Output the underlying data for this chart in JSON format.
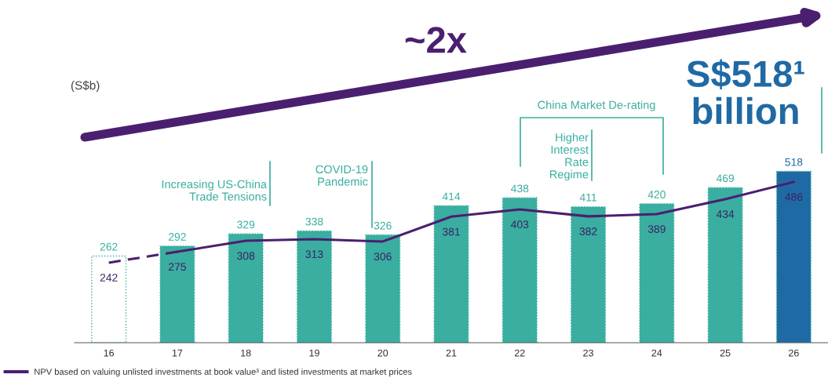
{
  "chart_data": {
    "type": "bar",
    "categories": [
      "16",
      "17",
      "18",
      "19",
      "20",
      "21",
      "22",
      "23",
      "24",
      "25",
      "26"
    ],
    "series": [
      {
        "color": "#3aaea0",
        "colors": [
          "#ffffff",
          "#3aaea0",
          "#3aaea0",
          "#3aaea0",
          "#3aaea0",
          "#3aaea0",
          "#3aaea0",
          "#3aaea0",
          "#3aaea0",
          "#3aaea0",
          "#1f6aa5"
        ],
        "values": [
          262,
          292,
          329,
          338,
          326,
          414,
          438,
          411,
          420,
          469,
          518
        ]
      },
      {
        "type": "line",
        "color": "#4b1f6f",
        "line_style": "dashed",
        "values": [
          242,
          275,
          null,
          null,
          null,
          null,
          null,
          null,
          null,
          null,
          null
        ],
        "value_labels": [
          "242",
          null,
          null,
          null,
          null,
          null,
          null,
          null,
          null,
          null,
          null
        ]
      },
      {
        "type": "line",
        "name": "NPV based on valuing unlisted investments at book value³ and listed investments at market prices",
        "color": "#4b1f6f",
        "line_style": "solid",
        "values": [
          null,
          275,
          308,
          313,
          306,
          381,
          403,
          382,
          389,
          434,
          486
        ]
      }
    ],
    "data_labels": true,
    "legend": "bottom left",
    "grid": false,
    "annotations": [
      "~2x",
      "S$518¹\nbillion",
      "Increasing US-China\nTrade Tensions",
      "COVID-19\nPandemic",
      "China Market De-rating",
      "Higher\nInterest\nRate\nRegime",
      "(S$b)"
    ]
  }
}
